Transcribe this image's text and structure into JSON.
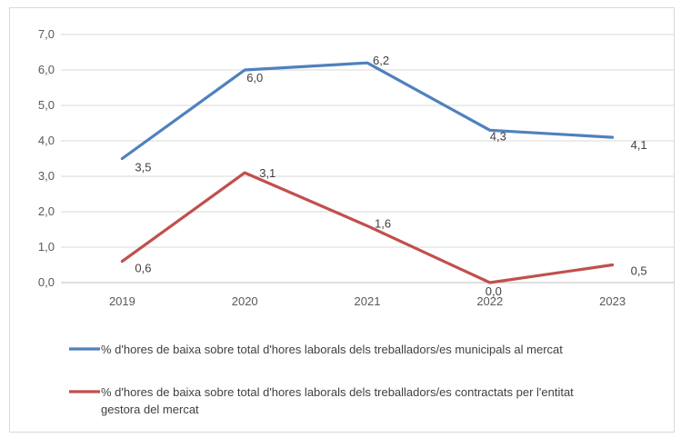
{
  "chart_data": {
    "type": "line",
    "x": [
      "2019",
      "2020",
      "2021",
      "2022",
      "2023"
    ],
    "ylim": [
      0,
      7
    ],
    "yticks": [
      "0,0",
      "1,0",
      "2,0",
      "3,0",
      "4,0",
      "5,0",
      "6,0",
      "7,0"
    ],
    "grid": "horizontal",
    "legend_position": "bottom",
    "series": [
      {
        "name": "% d'hores de baixa sobre total d'hores laborals dels treballadors/es municipals al mercat",
        "values": [
          3.5,
          6.0,
          6.2,
          4.3,
          4.1
        ],
        "labels": [
          "3,5",
          "6,0",
          "6,2",
          "4,3",
          "4,1"
        ],
        "color": "#4f81bd"
      },
      {
        "name": "% d'hores de baixa sobre total d'hores laborals dels treballadors/es contractats per l'entitat gestora del mercat",
        "name_lines": [
          "% d'hores de baixa sobre total d'hores laborals dels treballadors/es contractats per l'entitat",
          "gestora del mercat"
        ],
        "values": [
          0.6,
          3.1,
          1.6,
          0.0,
          0.5
        ],
        "labels": [
          "0,6",
          "3,1",
          "1,6",
          "0,0",
          "0,5"
        ],
        "color": "#c0504d"
      }
    ]
  }
}
